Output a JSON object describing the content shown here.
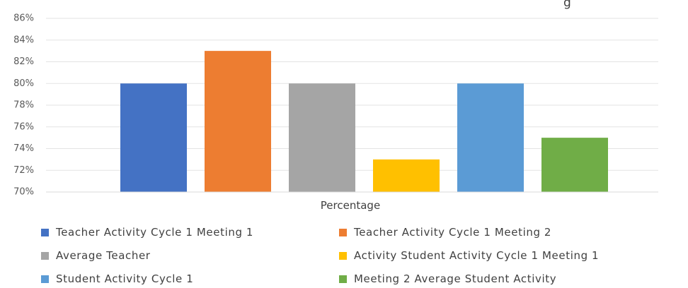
{
  "chart_data": {
    "type": "bar",
    "title": "g",
    "xlabel": "Percentage",
    "ylabel": "",
    "ylim": [
      70,
      86
    ],
    "yticks": [
      "70%",
      "72%",
      "74%",
      "76%",
      "78%",
      "80%",
      "82%",
      "84%",
      "86%"
    ],
    "grid": true,
    "legend_position": "bottom",
    "series": [
      {
        "name": "Teacher Activity Cycle 1 Meeting 1",
        "value": 80,
        "color": "#4472C4"
      },
      {
        "name": "Teacher Activity Cycle 1 Meeting 2",
        "value": 83,
        "color": "#ED7D31"
      },
      {
        "name": "Average Teacher",
        "value": 80,
        "color": "#A5A5A5"
      },
      {
        "name": "Activity Student Activity Cycle 1 Meeting 1",
        "value": 73,
        "color": "#FFC000"
      },
      {
        "name": "Student Activity Cycle 1",
        "value": 80,
        "color": "#5B9BD5"
      },
      {
        "name": "Meeting 2 Average Student Activity",
        "value": 75,
        "color": "#70AD47"
      }
    ]
  }
}
